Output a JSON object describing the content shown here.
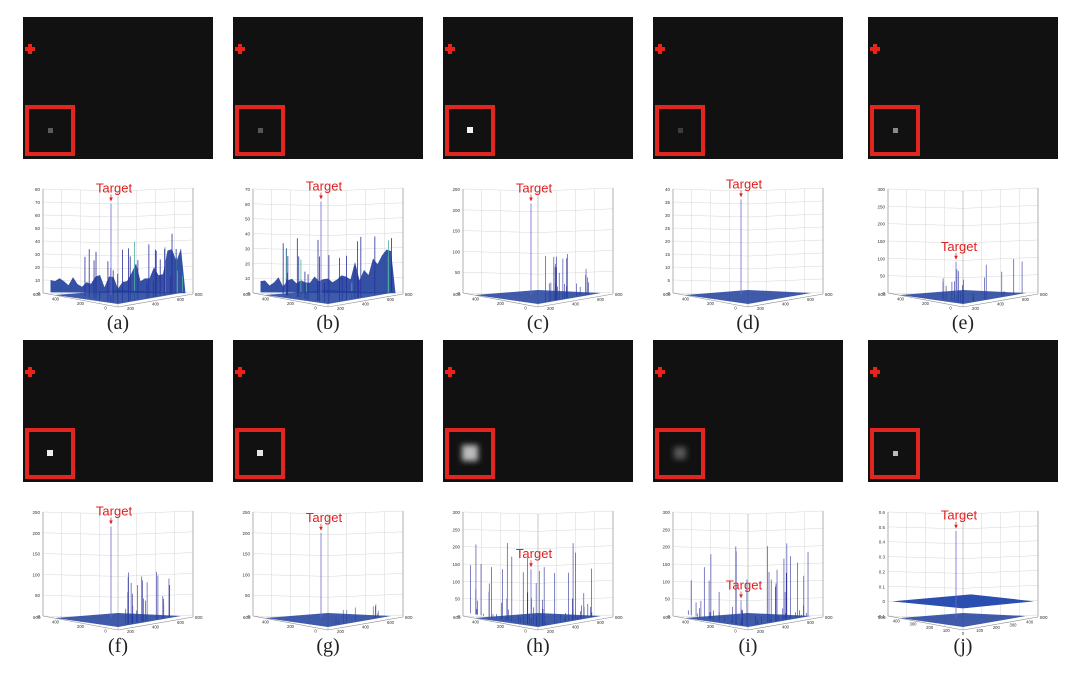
{
  "target_label": "Target",
  "panels": [
    {
      "caption": "(a)",
      "dot": {
        "size": 5,
        "color": "#5a5a5a",
        "blur": 0
      },
      "zmax": 80,
      "zticks": [
        "80",
        "70",
        "60",
        "50",
        "40",
        "30",
        "20",
        "10",
        "0"
      ],
      "xticks": [
        "400",
        "200",
        "0",
        "200",
        "400",
        "600"
      ],
      "corner_left": "600",
      "corner_right": "800",
      "target_level": 0.86,
      "arrow_level": 0.86,
      "label_pos": "top",
      "noise": "dense"
    },
    {
      "caption": "(b)",
      "dot": {
        "size": 5,
        "color": "#555555",
        "blur": 0
      },
      "zmax": 70,
      "zticks": [
        "70",
        "60",
        "50",
        "40",
        "30",
        "20",
        "10",
        "0"
      ],
      "xticks": [
        "400",
        "200",
        "0",
        "200",
        "400",
        "600"
      ],
      "corner_left": "600",
      "corner_right": "800",
      "target_level": 0.88,
      "arrow_level": 0.88,
      "label_pos": "top",
      "noise": "dense"
    },
    {
      "caption": "(c)",
      "dot": {
        "size": 6,
        "color": "#f2f2f2",
        "blur": 0
      },
      "zmax": 250,
      "zticks": [
        "250",
        "200",
        "150",
        "100",
        "50",
        "0"
      ],
      "xticks": [
        "400",
        "200",
        "0",
        "200",
        "400",
        "600"
      ],
      "corner_left": "600",
      "corner_right": "800",
      "target_level": 0.86,
      "arrow_level": 0.86,
      "label_pos": "top",
      "noise": "sparse-right"
    },
    {
      "caption": "(d)",
      "dot": {
        "size": 5,
        "color": "#3c3c3c",
        "blur": 0
      },
      "zmax": 40,
      "zticks": [
        "40",
        "35",
        "30",
        "25",
        "20",
        "15",
        "10",
        "5",
        "0"
      ],
      "xticks": [
        "400",
        "200",
        "0",
        "200",
        "400",
        "600"
      ],
      "corner_left": "600",
      "corner_right": "800",
      "target_level": 0.9,
      "arrow_level": 0.9,
      "label_pos": "top",
      "noise": "flat"
    },
    {
      "caption": "(e)",
      "dot": {
        "size": 5,
        "color": "#8a8a8a",
        "blur": 0
      },
      "zmax": 300,
      "zticks": [
        "300",
        "250",
        "200",
        "150",
        "100",
        "50",
        "0"
      ],
      "xticks": [
        "400",
        "200",
        "0",
        "200",
        "400",
        "600"
      ],
      "corner_left": "600",
      "corner_right": "800",
      "target_level": 0.3,
      "arrow_level": 0.3,
      "label_pos": "mid",
      "noise": "sparse"
    },
    {
      "caption": "(f)",
      "dot": {
        "size": 6,
        "color": "#eeeeee",
        "blur": 0
      },
      "zmax": 250,
      "zticks": [
        "250",
        "200",
        "150",
        "100",
        "50",
        "0"
      ],
      "xticks": [
        "400",
        "200",
        "0",
        "200",
        "400",
        "600"
      ],
      "corner_left": "600",
      "corner_right": "800",
      "target_level": 0.86,
      "arrow_level": 0.86,
      "label_pos": "top",
      "noise": "sparse-right"
    },
    {
      "caption": "(g)",
      "dot": {
        "size": 6,
        "color": "#e6e6e6",
        "blur": 0
      },
      "zmax": 250,
      "zticks": [
        "250",
        "200",
        "150",
        "100",
        "50",
        "0"
      ],
      "xticks": [
        "400",
        "200",
        "0",
        "200",
        "400",
        "600"
      ],
      "corner_left": "600",
      "corner_right": "800",
      "target_level": 0.8,
      "arrow_level": 0.8,
      "label_pos": "top",
      "noise": "few"
    },
    {
      "caption": "(h)",
      "dot": {
        "size": 16,
        "color": "#bdbdbd",
        "blur": 3
      },
      "zmax": 300,
      "zticks": [
        "300",
        "250",
        "200",
        "150",
        "100",
        "50",
        "0"
      ],
      "xticks": [
        "400",
        "200",
        "0",
        "200",
        "400",
        "600"
      ],
      "corner_left": "600",
      "corner_right": "800",
      "target_level": 0.45,
      "arrow_level": 0.45,
      "label_pos": "mid",
      "noise": "dense-sparse"
    },
    {
      "caption": "(i)",
      "dot": {
        "size": 12,
        "color": "#5a5a5a",
        "blur": 3
      },
      "zmax": 300,
      "zticks": [
        "300",
        "250",
        "200",
        "150",
        "100",
        "50",
        "0"
      ],
      "xticks": [
        "400",
        "200",
        "0",
        "200",
        "400",
        "600"
      ],
      "corner_left": "600",
      "corner_right": "800",
      "target_level": 0.15,
      "arrow_level": 0.15,
      "label_pos": "low",
      "noise": "dense-sparse"
    },
    {
      "caption": "(j)",
      "dot": {
        "size": 5,
        "color": "#bbbbbb",
        "blur": 0
      },
      "zmax": 0.6,
      "zticks": [
        "0.6",
        "0.5",
        "0.4",
        "0.3",
        "0.2",
        "0.1",
        "0",
        "-0.1"
      ],
      "xticks": [
        "400",
        "300",
        "200",
        "100",
        "0",
        "100",
        "200",
        "300",
        "400"
      ],
      "corner_left": "500",
      "corner_right": "800",
      "target_level": 0.82,
      "arrow_level": 0.82,
      "label_pos": "top",
      "noise": "plane"
    }
  ],
  "colors": {
    "cross": "#e8231a",
    "box": "#e0261e",
    "spike": "#2a2f9a",
    "surface": "#1f3e9b",
    "accent": "#4fb0a0",
    "target": "#e02020"
  }
}
